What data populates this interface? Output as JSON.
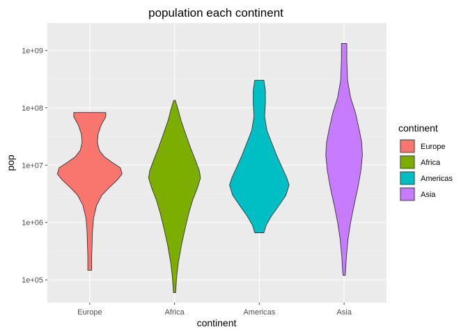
{
  "chart_data": {
    "type": "violin",
    "title": "population each continent",
    "xlabel": "continent",
    "ylabel": "pop",
    "y_scale": "log10",
    "ylim": [
      40000,
      3000000000
    ],
    "y_ticks": [
      {
        "value": 100000,
        "label": "1e+05"
      },
      {
        "value": 1000000,
        "label": "1e+06"
      },
      {
        "value": 10000000,
        "label": "1e+07"
      },
      {
        "value": 100000000,
        "label": "1e+08"
      },
      {
        "value": 1000000000,
        "label": "1e+09"
      }
    ],
    "categories": [
      "Europe",
      "Africa",
      "Americas",
      "Asia"
    ],
    "legend": {
      "title": "continent",
      "position": "right"
    },
    "grid": true,
    "series": [
      {
        "name": "Europe",
        "color": "#F8766D",
        "min": 147000,
        "max": 82400000,
        "profile": [
          [
            82400000,
            0.42
          ],
          [
            70000000,
            0.42
          ],
          [
            50000000,
            0.3
          ],
          [
            35000000,
            0.22
          ],
          [
            25000000,
            0.2
          ],
          [
            18000000,
            0.25
          ],
          [
            14000000,
            0.38
          ],
          [
            11000000,
            0.6
          ],
          [
            9000000,
            0.8
          ],
          [
            7000000,
            0.85
          ],
          [
            5500000,
            0.72
          ],
          [
            4000000,
            0.5
          ],
          [
            3000000,
            0.32
          ],
          [
            2000000,
            0.18
          ],
          [
            1200000,
            0.1
          ],
          [
            700000,
            0.07
          ],
          [
            400000,
            0.06
          ],
          [
            250000,
            0.05
          ],
          [
            147000,
            0.05
          ]
        ]
      },
      {
        "name": "Africa",
        "color": "#7CAE00",
        "min": 60000,
        "max": 135000000,
        "profile": [
          [
            135000000,
            0.02
          ],
          [
            100000000,
            0.08
          ],
          [
            60000000,
            0.17
          ],
          [
            35000000,
            0.29
          ],
          [
            20000000,
            0.42
          ],
          [
            12000000,
            0.55
          ],
          [
            8000000,
            0.65
          ],
          [
            6000000,
            0.68
          ],
          [
            4000000,
            0.6
          ],
          [
            2500000,
            0.48
          ],
          [
            1500000,
            0.38
          ],
          [
            800000,
            0.28
          ],
          [
            400000,
            0.18
          ],
          [
            200000,
            0.1
          ],
          [
            120000,
            0.06
          ],
          [
            80000,
            0.04
          ],
          [
            60000,
            0.03
          ]
        ]
      },
      {
        "name": "Americas",
        "color": "#00BFC4",
        "min": 662000,
        "max": 301000000,
        "profile": [
          [
            301000000,
            0.12
          ],
          [
            200000000,
            0.16
          ],
          [
            120000000,
            0.16
          ],
          [
            70000000,
            0.14
          ],
          [
            40000000,
            0.2
          ],
          [
            25000000,
            0.32
          ],
          [
            15000000,
            0.45
          ],
          [
            9000000,
            0.6
          ],
          [
            6000000,
            0.72
          ],
          [
            4500000,
            0.78
          ],
          [
            3000000,
            0.7
          ],
          [
            2000000,
            0.52
          ],
          [
            1300000,
            0.32
          ],
          [
            900000,
            0.18
          ],
          [
            662000,
            0.12
          ]
        ]
      },
      {
        "name": "Asia",
        "color": "#C77CFF",
        "min": 120000,
        "max": 1320000000,
        "profile": [
          [
            1320000000,
            0.07
          ],
          [
            700000000,
            0.07
          ],
          [
            300000000,
            0.09
          ],
          [
            150000000,
            0.17
          ],
          [
            80000000,
            0.3
          ],
          [
            40000000,
            0.4
          ],
          [
            25000000,
            0.46
          ],
          [
            15000000,
            0.48
          ],
          [
            8000000,
            0.44
          ],
          [
            4000000,
            0.36
          ],
          [
            2000000,
            0.26
          ],
          [
            1000000,
            0.17
          ],
          [
            500000,
            0.1
          ],
          [
            250000,
            0.06
          ],
          [
            150000,
            0.04
          ],
          [
            120000,
            0.03
          ]
        ]
      }
    ]
  }
}
